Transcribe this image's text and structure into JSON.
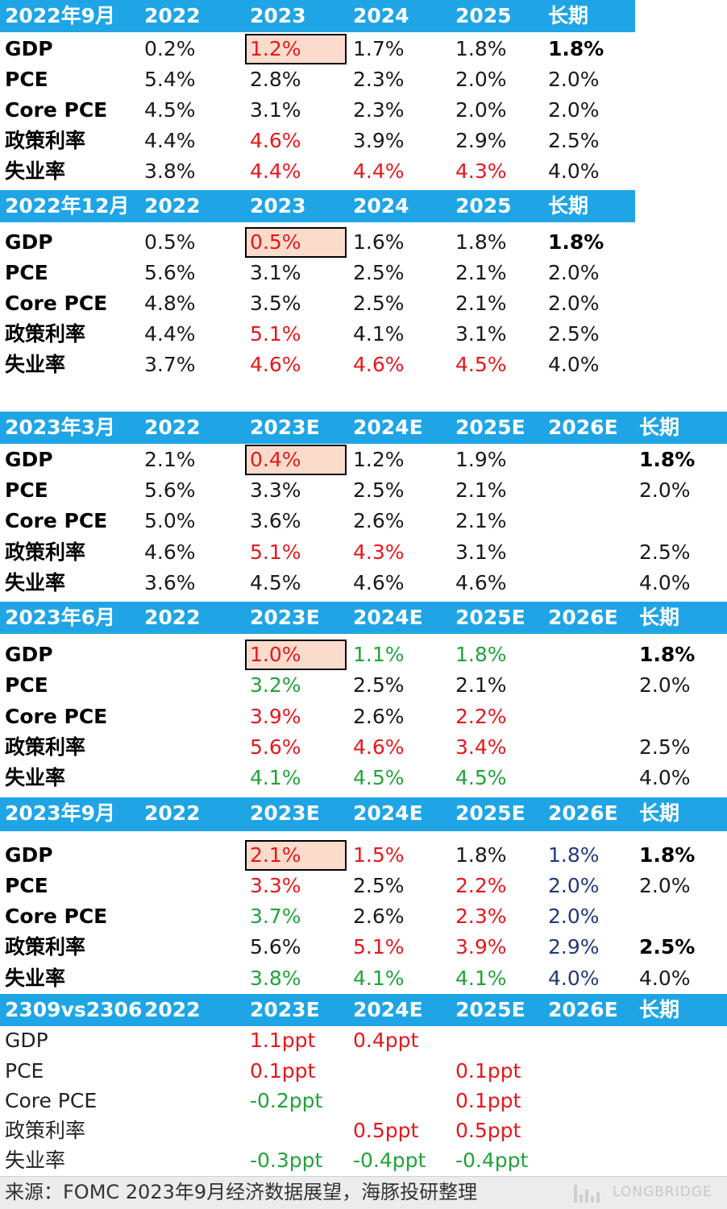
{
  "t1": {
    "header": [
      "2022年9月",
      "2022",
      "2023",
      "2024",
      "2025",
      "长期"
    ],
    "rows": [
      {
        "label": "GDP",
        "cells": [
          "0.2%",
          "1.2%",
          "1.7%",
          "1.8%",
          "1.8%"
        ]
      },
      {
        "label": "PCE",
        "cells": [
          "5.4%",
          "2.8%",
          "2.3%",
          "2.0%",
          "2.0%"
        ]
      },
      {
        "label": "Core PCE",
        "cells": [
          "4.5%",
          "3.1%",
          "2.3%",
          "2.0%",
          "2.0%"
        ]
      },
      {
        "label": "政策利率",
        "cells": [
          "4.4%",
          "4.6%",
          "3.9%",
          "2.9%",
          "2.5%"
        ]
      },
      {
        "label": "失业率",
        "cells": [
          "3.8%",
          "4.4%",
          "4.4%",
          "4.3%",
          "4.0%"
        ]
      }
    ]
  },
  "t2": {
    "header": [
      "2022年12月",
      "2022",
      "2023",
      "2024",
      "2025",
      "长期"
    ],
    "rows": [
      {
        "label": "GDP",
        "cells": [
          "0.5%",
          "0.5%",
          "1.6%",
          "1.8%",
          "1.8%"
        ]
      },
      {
        "label": "PCE",
        "cells": [
          "5.6%",
          "3.1%",
          "2.5%",
          "2.1%",
          "2.0%"
        ]
      },
      {
        "label": "Core PCE",
        "cells": [
          "4.8%",
          "3.5%",
          "2.5%",
          "2.1%",
          "2.0%"
        ]
      },
      {
        "label": "政策利率",
        "cells": [
          "4.4%",
          "5.1%",
          "4.1%",
          "3.1%",
          "2.5%"
        ]
      },
      {
        "label": "失业率",
        "cells": [
          "3.7%",
          "4.6%",
          "4.6%",
          "4.5%",
          "4.0%"
        ]
      }
    ]
  },
  "t3": {
    "header": [
      "2023年3月",
      "2022",
      "2023E",
      "2024E",
      "2025E",
      "2026E",
      "长期"
    ],
    "rows": [
      {
        "label": "GDP",
        "cells": [
          "2.1%",
          "0.4%",
          "1.2%",
          "1.9%",
          "",
          "1.8%"
        ]
      },
      {
        "label": "PCE",
        "cells": [
          "5.6%",
          "3.3%",
          "2.5%",
          "2.1%",
          "",
          "2.0%"
        ]
      },
      {
        "label": "Core PCE",
        "cells": [
          "5.0%",
          "3.6%",
          "2.6%",
          "2.1%",
          "",
          ""
        ]
      },
      {
        "label": "政策利率",
        "cells": [
          "4.6%",
          "5.1%",
          "4.3%",
          "3.1%",
          "",
          "2.5%"
        ]
      },
      {
        "label": "失业率",
        "cells": [
          "3.6%",
          "4.5%",
          "4.6%",
          "4.6%",
          "",
          "4.0%"
        ]
      }
    ]
  },
  "t4": {
    "header": [
      "2023年6月",
      "2022",
      "2023E",
      "2024E",
      "2025E",
      "2026E",
      "长期"
    ],
    "rows": [
      {
        "label": "GDP",
        "cells": [
          "",
          "1.0%",
          "1.1%",
          "1.8%",
          "",
          "1.8%"
        ]
      },
      {
        "label": "PCE",
        "cells": [
          "",
          "3.2%",
          "2.5%",
          "2.1%",
          "",
          "2.0%"
        ]
      },
      {
        "label": "Core PCE",
        "cells": [
          "",
          "3.9%",
          "2.6%",
          "2.2%",
          "",
          ""
        ]
      },
      {
        "label": "政策利率",
        "cells": [
          "",
          "5.6%",
          "4.6%",
          "3.4%",
          "",
          "2.5%"
        ]
      },
      {
        "label": "失业率",
        "cells": [
          "",
          "4.1%",
          "4.5%",
          "4.5%",
          "",
          "4.0%"
        ]
      }
    ]
  },
  "t5": {
    "header": [
      "2023年9月",
      "2022",
      "2023E",
      "2024E",
      "2025E",
      "2026E",
      "长期"
    ],
    "rows": [
      {
        "label": "GDP",
        "cells": [
          "",
          "2.1%",
          "1.5%",
          "1.8%",
          "1.8%",
          "1.8%"
        ]
      },
      {
        "label": "PCE",
        "cells": [
          "",
          "3.3%",
          "2.5%",
          "2.2%",
          "2.0%",
          "2.0%"
        ]
      },
      {
        "label": "Core PCE",
        "cells": [
          "",
          "3.7%",
          "2.6%",
          "2.3%",
          "2.0%",
          ""
        ]
      },
      {
        "label": "政策利率",
        "cells": [
          "",
          "5.6%",
          "5.1%",
          "3.9%",
          "2.9%",
          "2.5%"
        ]
      },
      {
        "label": "失业率",
        "cells": [
          "",
          "3.8%",
          "4.1%",
          "4.1%",
          "4.0%",
          "4.0%"
        ]
      }
    ]
  },
  "t6": {
    "header": [
      "2309vs2306",
      "2022",
      "2023E",
      "2024E",
      "2025E",
      "2026E",
      "长期"
    ],
    "rows": [
      {
        "label": "GDP",
        "cells": [
          "",
          "1.1ppt",
          "0.4ppt",
          "",
          "",
          ""
        ]
      },
      {
        "label": "PCE",
        "cells": [
          "",
          "0.1ppt",
          "",
          "0.1ppt",
          "",
          ""
        ]
      },
      {
        "label": "Core PCE",
        "cells": [
          "",
          "-0.2ppt",
          "",
          "0.1ppt",
          "",
          ""
        ]
      },
      {
        "label": "政策利率",
        "cells": [
          "",
          "",
          "0.5ppt",
          "0.5ppt",
          "",
          ""
        ]
      },
      {
        "label": "失业率",
        "cells": [
          "",
          "-0.3ppt",
          "-0.4ppt",
          "-0.4ppt",
          "",
          ""
        ]
      }
    ]
  },
  "source": {
    "text": "来源：FOMC 2023年9月经济数据展望，海豚投研整理",
    "watermark": "LONGBRIDGE"
  },
  "colors": {
    "header_bg": "#1fa5e6",
    "highlight_fill": "#fbdccc",
    "red": "#e8171c",
    "green": "#21a33a",
    "navy": "#223a7a"
  }
}
